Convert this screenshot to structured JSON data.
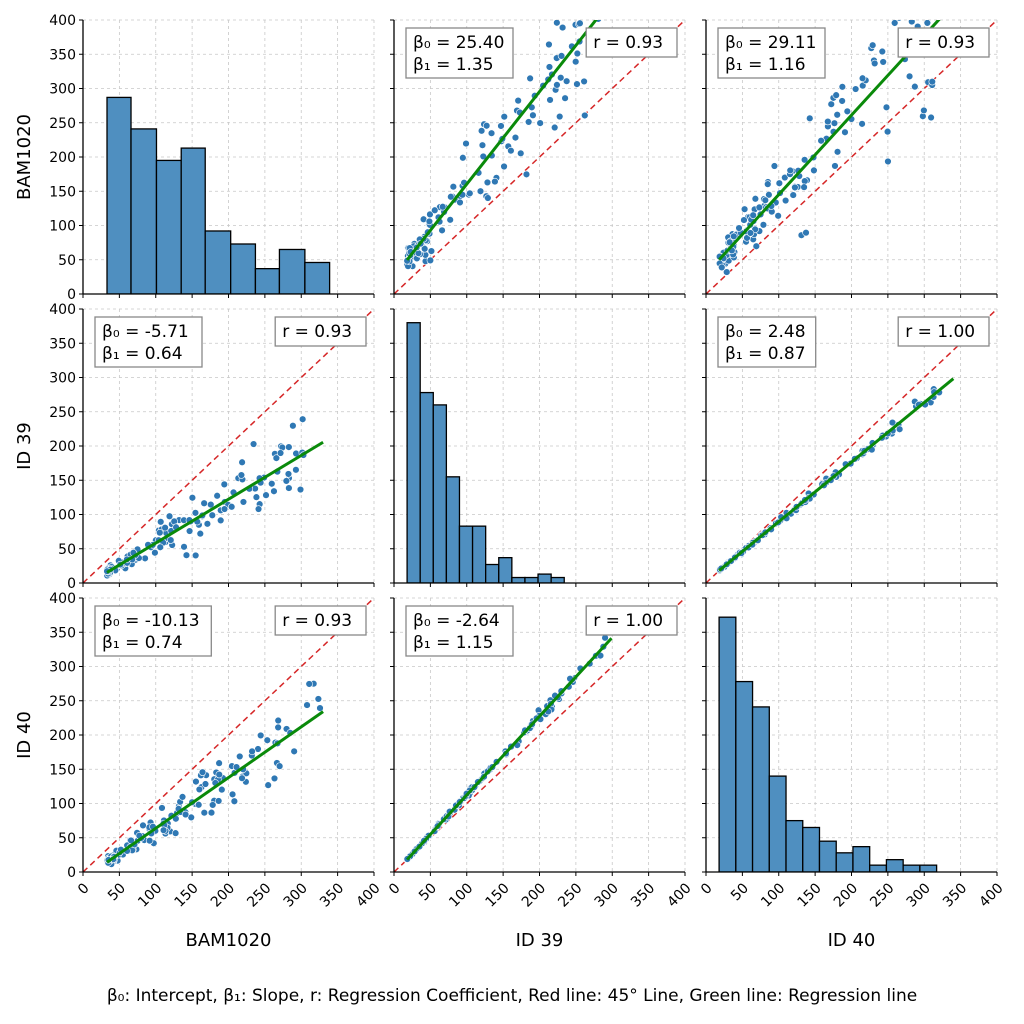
{
  "figure": {
    "caption": "β₀: Intercept, β₁: Slope, r: Regression Coefficient, Red line: 45° Line, Green line: Regression line",
    "variables": [
      "BAM1020",
      "ID 39",
      "ID 40"
    ],
    "colors": {
      "bar": "#4f8fc0",
      "bar_edge": "#000000",
      "point": "#2f78b4",
      "point_edge": "#ffffff",
      "regression": "#0a8a0a",
      "identity": "#d62728",
      "grid": "#c8c8c8"
    }
  },
  "chart_data": [
    {
      "row": 0,
      "col": 0,
      "type": "bar",
      "title": "",
      "x_ticks": [
        0,
        50,
        100,
        150,
        200,
        250,
        300,
        350,
        400
      ],
      "y_ticks": [
        0,
        50,
        100,
        150,
        200,
        250,
        300,
        350,
        400
      ],
      "ylim": [
        0,
        400
      ],
      "xlim": [
        0,
        400
      ],
      "grid": true,
      "bin_edges": [
        33,
        66,
        101,
        135,
        168,
        203,
        237,
        270,
        305,
        339
      ],
      "counts": [
        287,
        241,
        195,
        213,
        92,
        73,
        37,
        65,
        46
      ]
    },
    {
      "row": 0,
      "col": 1,
      "type": "scatter",
      "x_var": "ID 39",
      "y_var": "BAM1020",
      "xlim": [
        0,
        400
      ],
      "ylim": [
        0,
        400
      ],
      "grid": true,
      "intercept": 25.4,
      "slope": 1.35,
      "r": 0.93,
      "beta0_text": "β₀ = 25.40",
      "beta1_text": "β₁ = 1.35",
      "r_text": "r = 0.93",
      "reg_x": [
        18,
        299
      ]
    },
    {
      "row": 0,
      "col": 2,
      "type": "scatter",
      "x_var": "ID 40",
      "y_var": "BAM1020",
      "xlim": [
        0,
        400
      ],
      "ylim": [
        0,
        400
      ],
      "grid": true,
      "intercept": 29.11,
      "slope": 1.16,
      "r": 0.93,
      "beta0_text": "β₀ = 29.11",
      "beta1_text": "β₁ = 1.16",
      "r_text": "r = 0.93",
      "reg_x": [
        18,
        340
      ]
    },
    {
      "row": 1,
      "col": 0,
      "type": "scatter",
      "x_var": "BAM1020",
      "y_var": "ID 39",
      "xlim": [
        0,
        400
      ],
      "ylim": [
        0,
        400
      ],
      "grid": true,
      "intercept": -5.71,
      "slope": 0.64,
      "r": 0.93,
      "beta0_text": "β₀ = -5.71",
      "beta1_text": "β₁ = 0.64",
      "r_text": "r = 0.93",
      "reg_x": [
        33,
        330
      ]
    },
    {
      "row": 1,
      "col": 1,
      "type": "bar",
      "title": "",
      "xlim": [
        0,
        400
      ],
      "ylim": [
        0,
        400
      ],
      "grid": true,
      "bin_edges": [
        18,
        36,
        54,
        72,
        90,
        108,
        126,
        144,
        162,
        180,
        198,
        216,
        234,
        252,
        270,
        288
      ],
      "counts": [
        380,
        278,
        260,
        155,
        83,
        83,
        27,
        37,
        8,
        8,
        13,
        8,
        0,
        0,
        0
      ]
    },
    {
      "row": 1,
      "col": 2,
      "type": "scatter",
      "x_var": "ID 40",
      "y_var": "ID 39",
      "xlim": [
        0,
        400
      ],
      "ylim": [
        0,
        400
      ],
      "grid": true,
      "intercept": 2.48,
      "slope": 0.87,
      "r": 1.0,
      "beta0_text": "β₀ = 2.48",
      "beta1_text": "β₁ = 0.87",
      "r_text": "r = 1.00",
      "reg_x": [
        18,
        340
      ]
    },
    {
      "row": 2,
      "col": 0,
      "type": "scatter",
      "x_var": "BAM1020",
      "y_var": "ID 40",
      "xlim": [
        0,
        400
      ],
      "ylim": [
        0,
        400
      ],
      "grid": true,
      "intercept": -10.13,
      "slope": 0.74,
      "r": 0.93,
      "beta0_text": "β₀ = -10.13",
      "beta1_text": "β₁ = 0.74",
      "r_text": "r = 0.93",
      "reg_x": [
        33,
        330
      ]
    },
    {
      "row": 2,
      "col": 1,
      "type": "scatter",
      "x_var": "ID 39",
      "y_var": "ID 40",
      "xlim": [
        0,
        400
      ],
      "ylim": [
        0,
        400
      ],
      "grid": true,
      "intercept": -2.64,
      "slope": 1.15,
      "r": 1.0,
      "beta0_text": "β₀ = -2.64",
      "beta1_text": "β₁ = 1.15",
      "r_text": "r = 1.00",
      "reg_x": [
        18,
        299
      ]
    },
    {
      "row": 2,
      "col": 2,
      "type": "bar",
      "title": "",
      "xlim": [
        0,
        400
      ],
      "ylim": [
        0,
        400
      ],
      "grid": true,
      "bin_edges": [
        18,
        41,
        64,
        87,
        110,
        133,
        156,
        179,
        202,
        225,
        248,
        271,
        294,
        317,
        340
      ],
      "counts": [
        372,
        278,
        241,
        140,
        75,
        65,
        45,
        28,
        37,
        10,
        18,
        10,
        10,
        0
      ]
    }
  ],
  "axes": {
    "x_tick_values": [
      0,
      50,
      100,
      150,
      200,
      250,
      300,
      350,
      400
    ],
    "y_tick_values": [
      0,
      50,
      100,
      150,
      200,
      250,
      300,
      350,
      400
    ]
  }
}
